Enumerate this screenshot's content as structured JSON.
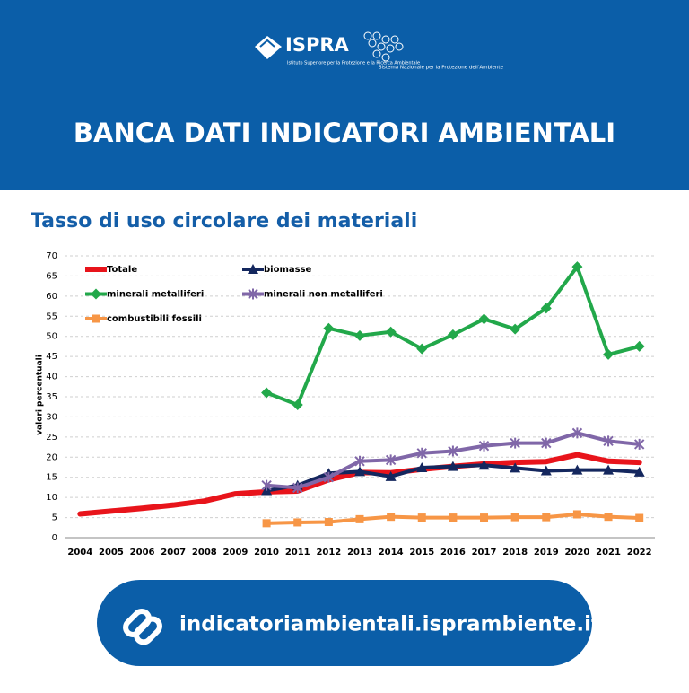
{
  "header": {
    "logo_name": "ISPRA",
    "logo_subtitle": "Istituto Superiore per la Protezione e la Ricerca Ambientale",
    "partner": "Sistema Nazionale per la Protezione dell'Ambiente",
    "title": "BANCA DATI INDICATORI AMBIENTALI"
  },
  "chart_data": {
    "type": "line",
    "title": "Tasso di uso circolare dei materiali",
    "y_label": "valori percentuali",
    "categories": [
      "2004",
      "2005",
      "2006",
      "2007",
      "2008",
      "2009",
      "2010",
      "2011",
      "2012",
      "2013",
      "2014",
      "2015",
      "2016",
      "2017",
      "2018",
      "2019",
      "2020",
      "2021",
      "2022"
    ],
    "series": [
      {
        "name": "Totale",
        "color": "#e8141b",
        "marker": "none",
        "values": [
          5.9,
          6.6,
          7.3,
          8.1,
          9.1,
          10.9,
          11.4,
          11.6,
          14.4,
          16.2,
          16.1,
          17.0,
          17.7,
          18.3,
          18.7,
          18.9,
          20.6,
          19.0,
          18.7
        ]
      },
      {
        "name": "biomasse",
        "color": "#14275e",
        "marker": "triangle",
        "values": [
          null,
          null,
          null,
          null,
          null,
          null,
          11.7,
          13.0,
          16.0,
          16.4,
          15.2,
          17.4,
          17.7,
          18.0,
          17.3,
          16.6,
          16.8,
          16.8,
          16.3
        ]
      },
      {
        "name": "minerali metalliferi",
        "color": "#22a84a",
        "marker": "diamond",
        "values": [
          null,
          null,
          null,
          null,
          null,
          null,
          36.0,
          33.0,
          52.0,
          50.2,
          51.1,
          46.9,
          50.4,
          54.3,
          51.8,
          57.0,
          67.3,
          45.5,
          47.5
        ]
      },
      {
        "name": "minerali non metalliferi",
        "color": "#8067a8",
        "marker": "star",
        "values": [
          null,
          null,
          null,
          null,
          null,
          null,
          13.0,
          12.4,
          15.0,
          19.0,
          19.3,
          21.0,
          21.5,
          22.8,
          23.5,
          23.5,
          26.0,
          24.0,
          23.2
        ]
      },
      {
        "name": "combustibili fossili",
        "color": "#f79646",
        "marker": "square",
        "values": [
          null,
          null,
          null,
          null,
          null,
          null,
          3.6,
          3.8,
          3.9,
          4.6,
          5.2,
          5.0,
          5.0,
          5.0,
          5.1,
          5.1,
          5.8,
          5.2,
          4.9
        ]
      }
    ],
    "ylim": [
      0,
      70
    ],
    "yticks": [
      0,
      5,
      10,
      15,
      20,
      25,
      30,
      35,
      40,
      45,
      50,
      55,
      60,
      65,
      70
    ],
    "grid": true
  },
  "footer": {
    "url": "indicatoriambientali.isprambiente.it"
  }
}
